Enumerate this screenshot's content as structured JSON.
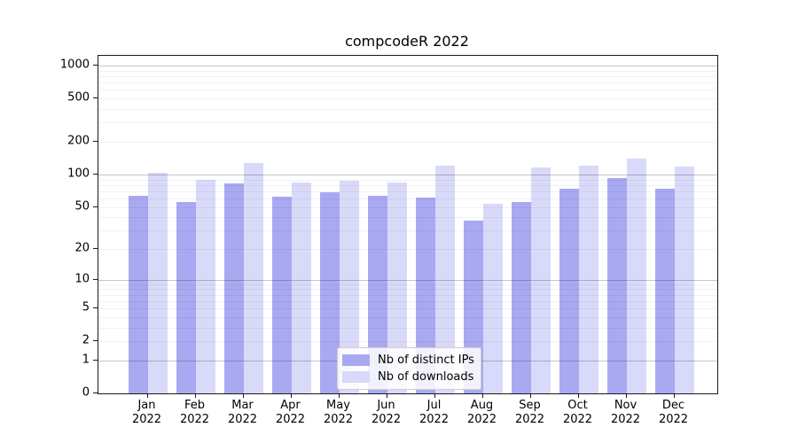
{
  "chart": {
    "title": "compcodeR 2022"
  },
  "chart_data": {
    "type": "bar",
    "title": "compcodeR 2022",
    "categories": [
      "Jan 2022",
      "Feb 2022",
      "Mar 2022",
      "Apr 2022",
      "May 2022",
      "Jun 2022",
      "Jul 2022",
      "Aug 2022",
      "Sep 2022",
      "Oct 2022",
      "Nov 2022",
      "Dec 2022"
    ],
    "series": [
      {
        "name": "Nb of distinct IPs",
        "color": "#a9a9f2",
        "values": [
          63,
          56,
          83,
          62,
          69,
          63,
          61,
          37,
          56,
          74,
          93,
          74
        ]
      },
      {
        "name": "Nb of downloads",
        "color": "#d9d9fa",
        "values": [
          103,
          90,
          127,
          85,
          88,
          85,
          121,
          53,
          116,
          121,
          140,
          118
        ]
      }
    ],
    "xlabel": "",
    "ylabel": "",
    "yscale": "log1p",
    "y_ticks": [
      0,
      1,
      2,
      5,
      10,
      20,
      50,
      100,
      200,
      500,
      1000
    ],
    "y_major_gridlines": [
      1,
      10,
      100,
      1000
    ],
    "ylim": [
      0,
      1230
    ],
    "grid": "both",
    "legend_position": "lower center"
  }
}
